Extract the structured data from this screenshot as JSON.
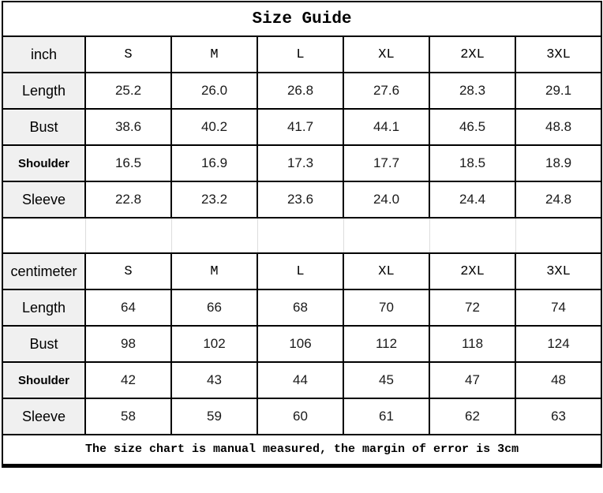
{
  "title": "Size Guide",
  "note": "The size chart is manual measured, the margin of error is 3cm",
  "colors": {
    "border": "#000000",
    "label_column_bg": "#f0f0f0",
    "separator_gridline": "#dddddd",
    "text": "#000000"
  },
  "chart_data": [
    {
      "type": "table",
      "title": "Size Guide",
      "unit_label": "inch",
      "size_columns": [
        "S",
        "M",
        "L",
        "XL",
        "2XL",
        "3XL"
      ],
      "rows": [
        {
          "label": "Length",
          "values": [
            "25.2",
            "26.0",
            "26.8",
            "27.6",
            "28.3",
            "29.1"
          ]
        },
        {
          "label": "Bust",
          "values": [
            "38.6",
            "40.2",
            "41.7",
            "44.1",
            "46.5",
            "48.8"
          ]
        },
        {
          "label": "Shoulder",
          "values": [
            "16.5",
            "16.9",
            "17.3",
            "17.7",
            "18.5",
            "18.9"
          ]
        },
        {
          "label": "Sleeve",
          "values": [
            "22.8",
            "23.2",
            "23.6",
            "24.0",
            "24.4",
            "24.8"
          ]
        }
      ]
    },
    {
      "type": "table",
      "title": "Size Guide",
      "unit_label": "centimeter",
      "size_columns": [
        "S",
        "M",
        "L",
        "XL",
        "2XL",
        "3XL"
      ],
      "rows": [
        {
          "label": "Length",
          "values": [
            "64",
            "66",
            "68",
            "70",
            "72",
            "74"
          ]
        },
        {
          "label": "Bust",
          "values": [
            "98",
            "102",
            "106",
            "112",
            "118",
            "124"
          ]
        },
        {
          "label": "Shoulder",
          "values": [
            "42",
            "43",
            "44",
            "45",
            "47",
            "48"
          ]
        },
        {
          "label": "Sleeve",
          "values": [
            "58",
            "59",
            "60",
            "61",
            "62",
            "63"
          ]
        }
      ]
    }
  ]
}
